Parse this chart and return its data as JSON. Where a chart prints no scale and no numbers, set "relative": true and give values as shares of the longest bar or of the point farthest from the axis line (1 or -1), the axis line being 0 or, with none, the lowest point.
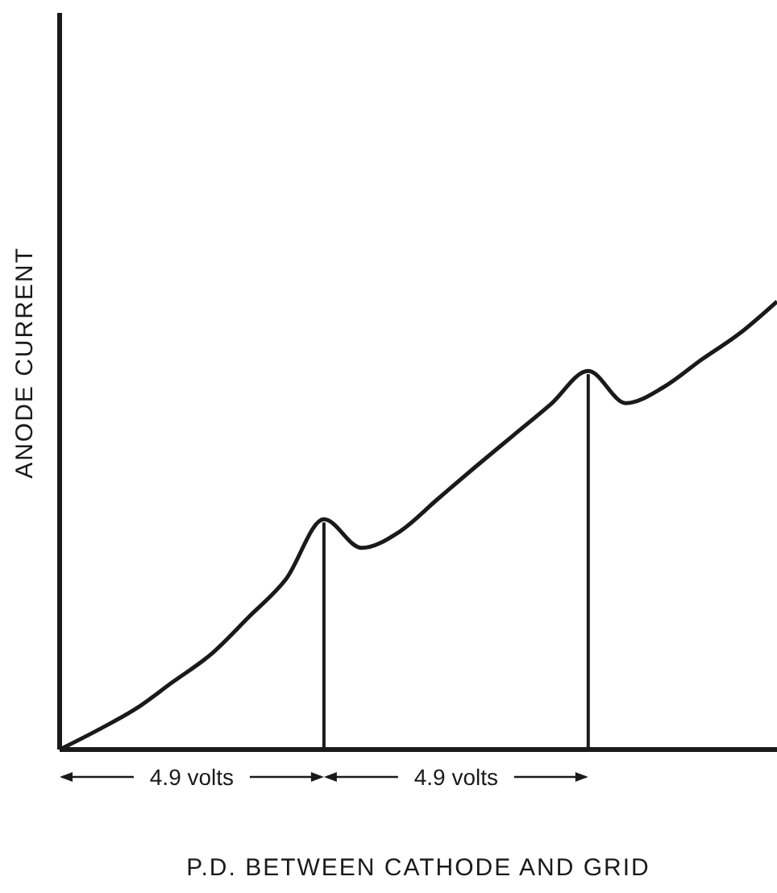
{
  "chart_data": {
    "type": "line",
    "relative": true,
    "xlabel": "P.D. BETWEEN CATHODE AND GRID",
    "ylabel": "ANODE CURRENT",
    "marker": "none",
    "line_style": "solid",
    "categories": [
      null,
      null,
      null,
      null,
      null,
      null,
      null,
      null,
      null,
      null,
      null,
      null,
      null,
      null,
      null,
      null,
      null,
      null,
      null,
      null
    ],
    "series": [
      {
        "color": "#1a1a1a",
        "values": [
          0,
          0.043,
          0.09,
          0.151,
          0.212,
          0.295,
          0.381,
          0.514,
          0.45,
          0.486,
          0.558,
          0.63,
          0.7,
          0.77,
          0.845,
          0.773,
          0.809,
          0.87,
          0.928,
          1
        ]
      }
    ],
    "annotations": [
      "4.9 volts",
      "4.9 volts"
    ]
  }
}
